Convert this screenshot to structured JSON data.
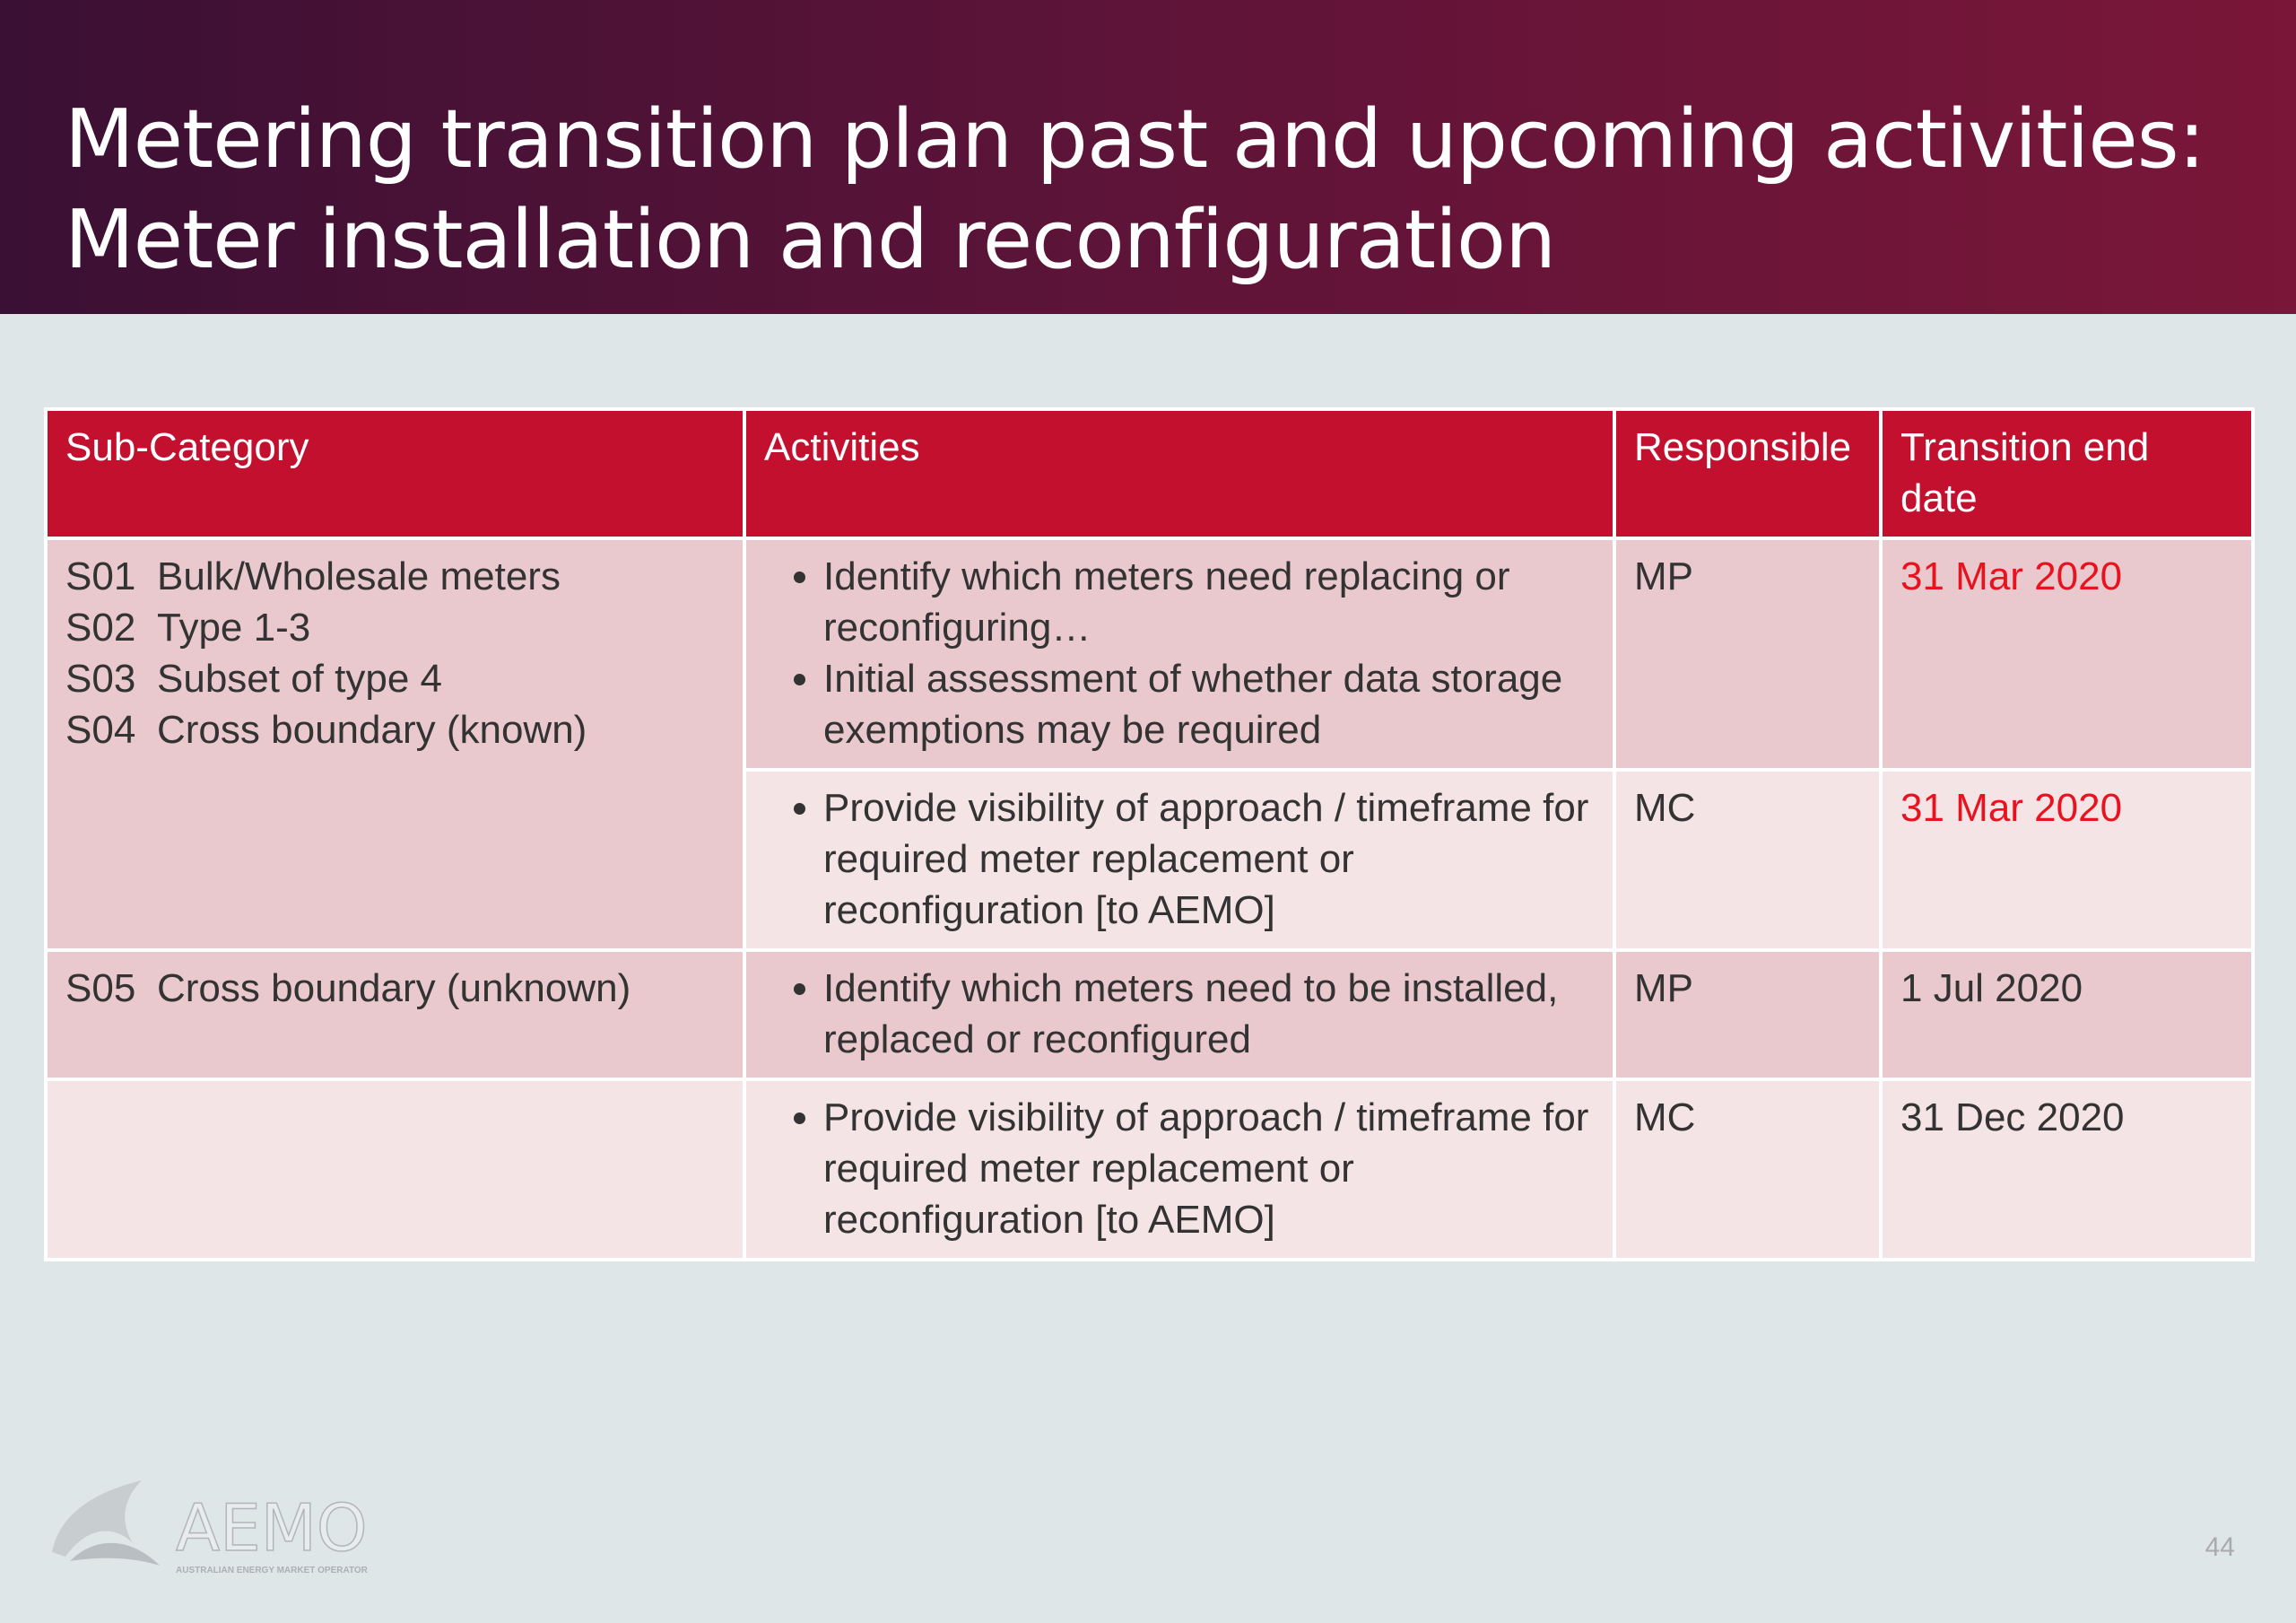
{
  "header": {
    "title": "Metering transition plan past and upcoming activities: Meter installation and reconfiguration"
  },
  "table": {
    "columns": [
      "Sub-Category",
      "Activities",
      "Responsible",
      "Transition end date"
    ],
    "rows": [
      {
        "sub_category": [
          {
            "code": "S01",
            "label": "Bulk/Wholesale meters"
          },
          {
            "code": "S02",
            "label": "Type 1-3"
          },
          {
            "code": "S03",
            "label": "Subset of type 4"
          },
          {
            "code": "S04",
            "label": "Cross boundary (known)"
          }
        ],
        "activities": [
          "Identify which meters need replacing or reconfiguring…",
          "Initial assessment of whether data storage exemptions may be required"
        ],
        "responsible": "MP",
        "end_date": "31 Mar 2020"
      },
      {
        "activities": [
          "Provide visibility of approach / timeframe for required meter replacement or reconfiguration [to AEMO]"
        ],
        "responsible": "MC",
        "end_date": "31 Mar 2020"
      },
      {
        "sub_category": [
          {
            "code": "S05",
            "label": "Cross boundary (unknown)"
          }
        ],
        "activities": [
          "Identify which meters need to be installed, replaced or reconfigured"
        ],
        "responsible": "MP",
        "end_date": "1 Jul 2020"
      },
      {
        "activities": [
          "Provide visibility of approach / timeframe for required meter replacement or reconfiguration [to AEMO]"
        ],
        "responsible": "MC",
        "end_date": "31 Dec 2020"
      }
    ]
  },
  "footer": {
    "logo": "AEMO",
    "logo_subtitle": "AUSTRALIAN ENERGY MARKET OPERATOR",
    "page_number": "44"
  }
}
